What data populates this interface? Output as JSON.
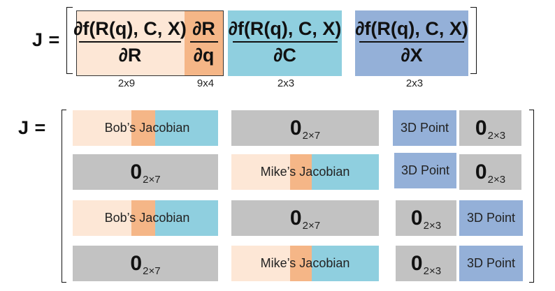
{
  "top": {
    "j_label": "J =",
    "blocks": [
      {
        "numerator": "∂f(R(q), C, X)",
        "denominator": "∂R",
        "dim": "2x9"
      },
      {
        "numerator": "∂R",
        "denominator": "∂q",
        "dim": "9x4"
      },
      {
        "numerator": "∂f(R(q), C, X)",
        "denominator": "∂C",
        "dim": "2x3"
      },
      {
        "numerator": "∂f(R(q), C, X)",
        "denominator": "∂X",
        "dim": "2x3"
      }
    ]
  },
  "bottom": {
    "j_label": "J =",
    "rows": [
      {
        "camera_col1": "Bob’s Jacobian",
        "camera_col2": "0",
        "camera_col2_sub": "2×7",
        "point_col1": "3D Point",
        "point_col2": "0",
        "point_col2_sub": "2×3"
      },
      {
        "camera_col1": "0",
        "camera_col1_sub": "2×7",
        "camera_col2": "Mike’s Jacobian",
        "point_col1": "3D Point",
        "point_col2": "0",
        "point_col2_sub": "2×3"
      },
      {
        "camera_col1": "Bob’s Jacobian",
        "camera_col2": "0",
        "camera_col2_sub": "2×7",
        "point_col1": "0",
        "point_col1_sub": "2×3",
        "point_col2": "3D Point"
      },
      {
        "camera_col1": "0",
        "camera_col1_sub": "2×7",
        "camera_col2": "Mike’s Jacobian",
        "point_col1": "0",
        "point_col1_sub": "2×3",
        "point_col2": "3D Point"
      }
    ]
  },
  "colors": {
    "peach_light": "#fde7d6",
    "orange": "#f5b687",
    "teal": "#8fcfdf",
    "blue": "#94b0d8",
    "gray": "#c2c2c2"
  }
}
